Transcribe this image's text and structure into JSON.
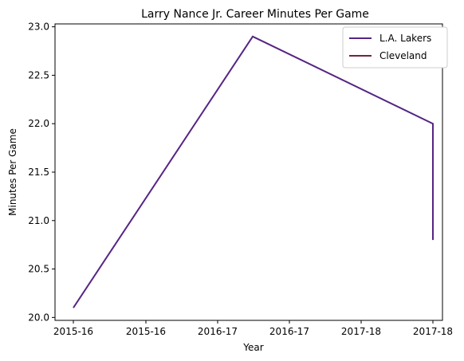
{
  "chart_data": {
    "type": "line",
    "title": "Larry Nance Jr. Career Minutes Per Game",
    "xlabel": "Year",
    "ylabel": "Minutes Per Game",
    "x_tick_labels": [
      "2015-16",
      "2015-16",
      "2016-17",
      "2016-17",
      "2017-18",
      "2017-18"
    ],
    "ylim": [
      19.97,
      23.03
    ],
    "y_ticks": [
      20.0,
      20.5,
      21.0,
      21.5,
      22.0,
      22.5,
      23.0
    ],
    "y_tick_labels": [
      "20.0",
      "20.5",
      "21.0",
      "21.5",
      "22.0",
      "22.5",
      "23.0"
    ],
    "legend_position": "top-right",
    "grid": false,
    "series": [
      {
        "name": "L.A. Lakers",
        "color": "#552583",
        "points": [
          {
            "x": "2015-16",
            "y": 20.1
          },
          {
            "x": "2016-17",
            "y": 22.9
          },
          {
            "x": "2017-18",
            "y": 22.0
          },
          {
            "x": "2017-18",
            "y": 20.8
          }
        ]
      },
      {
        "name": "Cleveland",
        "color": "#6F263D",
        "points": [
          {
            "x": "2017-18",
            "y": 20.8
          }
        ]
      }
    ]
  }
}
